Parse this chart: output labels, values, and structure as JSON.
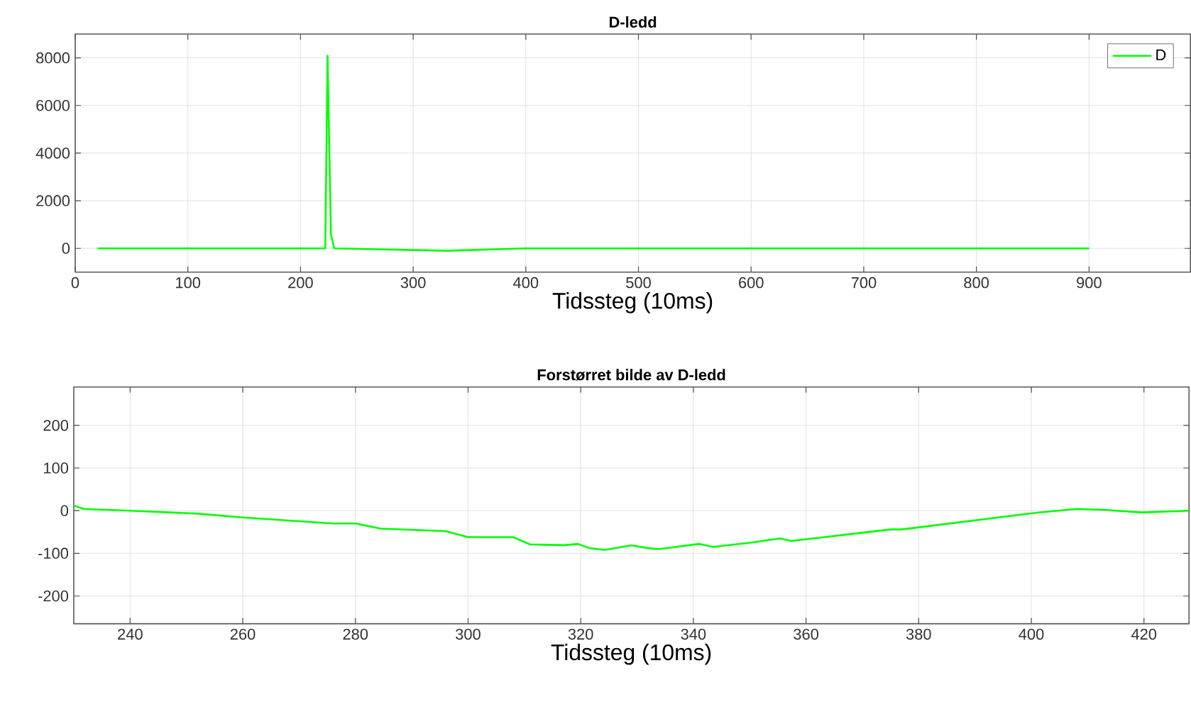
{
  "chart_data": [
    {
      "type": "line",
      "title": "D-ledd",
      "xlabel": "Tidssteg (10ms)",
      "xlim": [
        0,
        990
      ],
      "ylim": [
        -1000,
        9000
      ],
      "xticks": [
        0,
        100,
        200,
        300,
        400,
        500,
        600,
        700,
        800,
        900
      ],
      "yticks": [
        0,
        2000,
        4000,
        6000,
        8000
      ],
      "grid": true,
      "legend": "top right",
      "series": [
        {
          "name": "D",
          "color": "#00ff00",
          "x": [
            20,
            222,
            224,
            227,
            230,
            330,
            400,
            900
          ],
          "values": [
            0,
            0,
            8100,
            600,
            0,
            -100,
            0,
            0
          ]
        }
      ]
    },
    {
      "type": "line",
      "title": "Forstørret bilde av D-ledd",
      "xlabel": "Tidssteg (10ms)",
      "xlim": [
        230,
        428
      ],
      "ylim": [
        -265,
        290
      ],
      "xticks": [
        240,
        260,
        280,
        300,
        320,
        340,
        360,
        380,
        400,
        420
      ],
      "yticks": [
        -200,
        -100,
        0,
        100,
        200
      ],
      "grid": true,
      "series": [
        {
          "color": "#00ff00",
          "x": [
            230,
            231.8,
            240,
            252,
            260,
            276,
            280,
            284.5,
            296,
            300,
            308,
            311,
            317,
            319.5,
            321.6,
            324.3,
            329,
            332,
            334,
            341,
            343.5,
            350.7,
            355.4,
            357.4,
            360,
            375,
            377,
            400.7,
            408,
            412.8,
            419.6,
            428
          ],
          "values": [
            12,
            4,
            0,
            -7,
            -16,
            -30,
            -30,
            -42,
            -48,
            -62,
            -62,
            -79,
            -81,
            -78,
            -88,
            -92,
            -81,
            -88,
            -90,
            -78,
            -85,
            -74,
            -65,
            -71,
            -67,
            -44,
            -44,
            -5,
            4,
            2,
            -4,
            0
          ]
        }
      ]
    }
  ]
}
